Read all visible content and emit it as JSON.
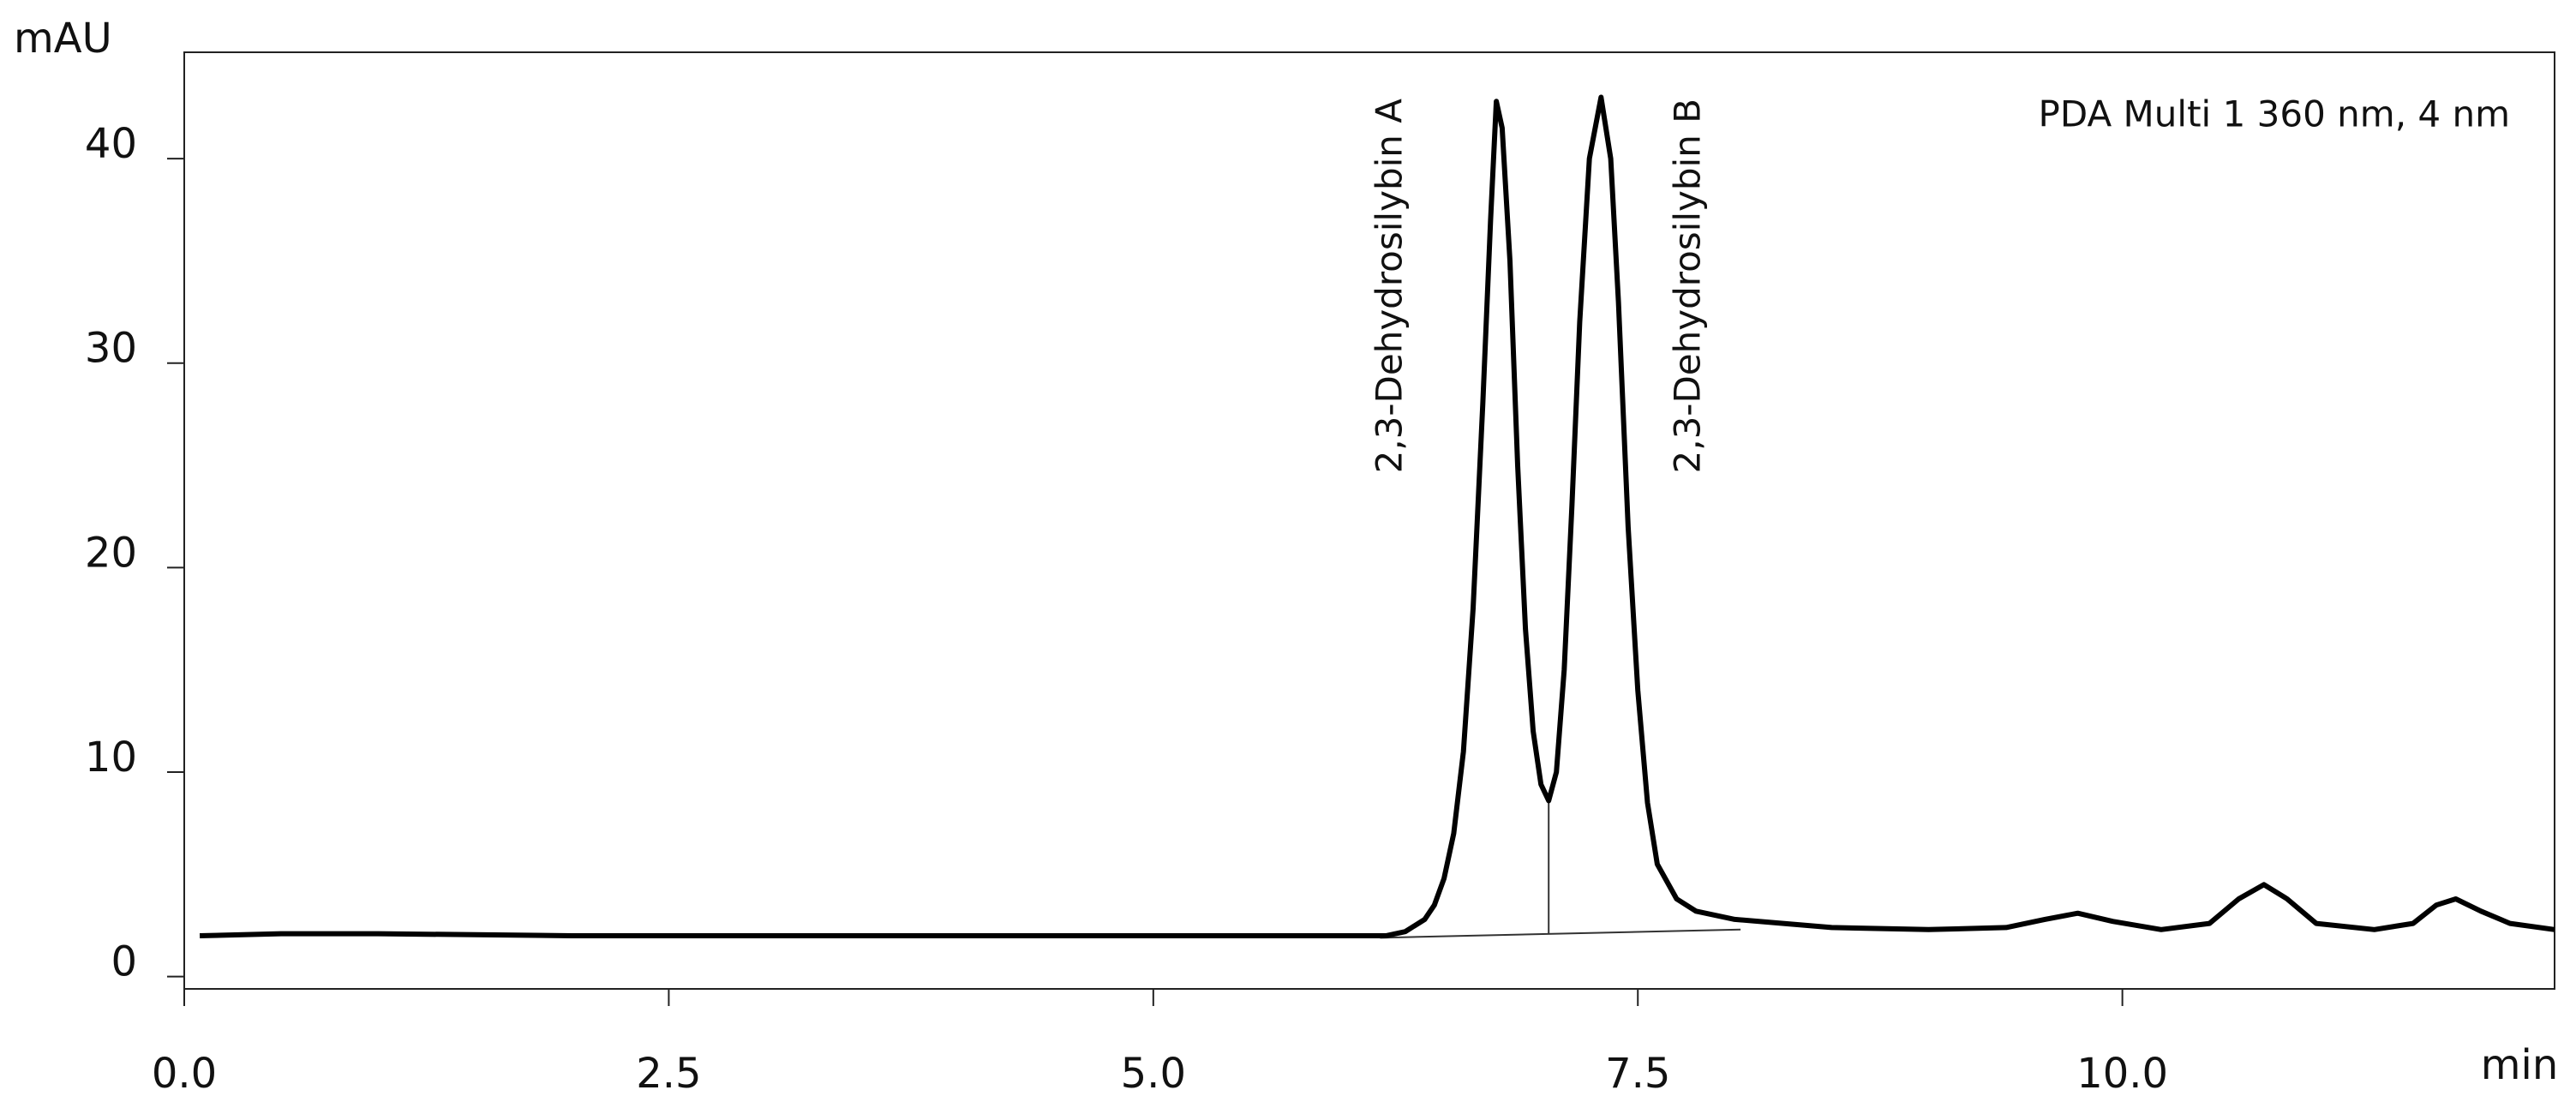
{
  "chart_data": {
    "type": "line",
    "y_label": "mAU",
    "x_label": "min",
    "annotations": [
      "2,3-Dehydrosilybin A",
      "2,3-Dehydrosilybin B",
      "PDA Multi 1 360 nm, 4 nm"
    ],
    "x": [
      0.08,
      0.5,
      1.0,
      2.0,
      3.0,
      4.0,
      5.0,
      5.8,
      6.2,
      6.3,
      6.4,
      6.45,
      6.5,
      6.55,
      6.6,
      6.65,
      6.7,
      6.74,
      6.77,
      6.8,
      6.84,
      6.88,
      6.92,
      6.96,
      7.0,
      7.04,
      7.08,
      7.12,
      7.16,
      7.2,
      7.25,
      7.31,
      7.36,
      7.4,
      7.45,
      7.5,
      7.55,
      7.6,
      7.7,
      7.8,
      8.0,
      8.5,
      9.0,
      9.4,
      9.6,
      9.77,
      9.95,
      10.2,
      10.45,
      10.6,
      10.73,
      10.85,
      11.0,
      11.3,
      11.5,
      11.62,
      11.72,
      11.85,
      12.0,
      12.23
    ],
    "series": [
      {
        "color": "#000000",
        "values": [
          2.0,
          2.1,
          2.1,
          2.0,
          2.0,
          2.0,
          2.0,
          2.0,
          2.0,
          2.2,
          2.8,
          3.5,
          4.8,
          7.0,
          11,
          18,
          28,
          37,
          42.8,
          41.5,
          35,
          25,
          17,
          12,
          9.4,
          8.6,
          10,
          15,
          23,
          32,
          40,
          43,
          40,
          33,
          22,
          14,
          8.5,
          5.5,
          3.8,
          3.2,
          2.8,
          2.4,
          2.3,
          2.4,
          2.8,
          3.1,
          2.7,
          2.3,
          2.6,
          3.8,
          4.5,
          3.8,
          2.6,
          2.3,
          2.6,
          3.5,
          3.8,
          3.2,
          2.6,
          2.3
        ]
      }
    ],
    "integration_lines": [
      {
        "x": [
          6.17,
          8.03
        ],
        "y": [
          1.9,
          2.3
        ]
      },
      {
        "x": [
          7.04,
          7.04
        ],
        "y": [
          2.1,
          8.6
        ]
      }
    ],
    "xlim": [
      0,
      12.23
    ],
    "ylim": [
      -0.6,
      45.2
    ],
    "xticks": [
      {
        "value": 0,
        "label": "0.0"
      },
      2.5,
      {
        "value": 5,
        "label": "5.0"
      },
      7.5,
      {
        "value": 10,
        "label": "10.0"
      }
    ],
    "yticks": [
      0,
      10,
      20,
      30,
      40
    ]
  }
}
